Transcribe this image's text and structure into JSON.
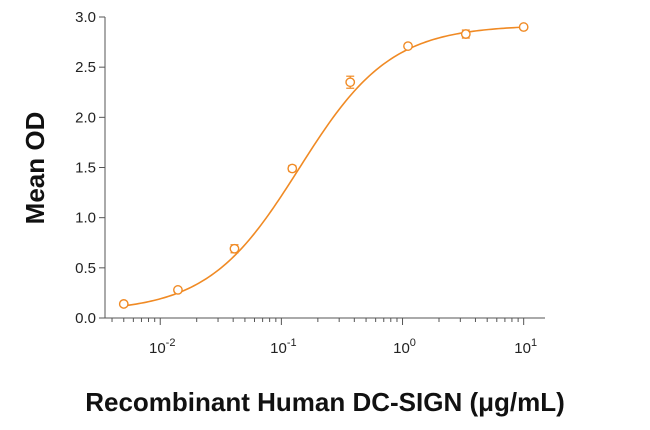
{
  "chart_data": {
    "type": "scatter",
    "title": "",
    "xlabel": "Recombinant Human DC-SIGN (μg/mL)",
    "ylabel": "Mean OD",
    "x_scale": "log",
    "xlim": [
      0.0035,
      15
    ],
    "ylim": [
      0,
      3.0
    ],
    "grid": false,
    "legend": "none",
    "color": "#F08A24",
    "y_ticks": [
      "0.0",
      "0.5",
      "1.0",
      "1.5",
      "2.0",
      "2.5",
      "3.0"
    ],
    "x_ticks": [
      {
        "value": 0.01,
        "base": "10",
        "exp": "-2"
      },
      {
        "value": 0.1,
        "base": "10",
        "exp": "-1"
      },
      {
        "value": 1,
        "base": "10",
        "exp": "0"
      },
      {
        "value": 10,
        "base": "10",
        "exp": "1"
      }
    ],
    "points": [
      {
        "x": 0.005,
        "y": 0.14,
        "err": 0.015
      },
      {
        "x": 0.014,
        "y": 0.28,
        "err": 0.02
      },
      {
        "x": 0.041,
        "y": 0.69,
        "err": 0.04
      },
      {
        "x": 0.123,
        "y": 1.49,
        "err": 0.03
      },
      {
        "x": 0.37,
        "y": 2.35,
        "err": 0.06
      },
      {
        "x": 1.11,
        "y": 2.71,
        "err": 0.02
      },
      {
        "x": 3.33,
        "y": 2.83,
        "err": 0.04
      },
      {
        "x": 10,
        "y": 2.9,
        "err": 0.02
      }
    ],
    "fit_curve": {
      "model": "4PL",
      "bottom": 0.06,
      "top": 2.92,
      "ec50": 0.14,
      "hill": 1.15
    }
  }
}
